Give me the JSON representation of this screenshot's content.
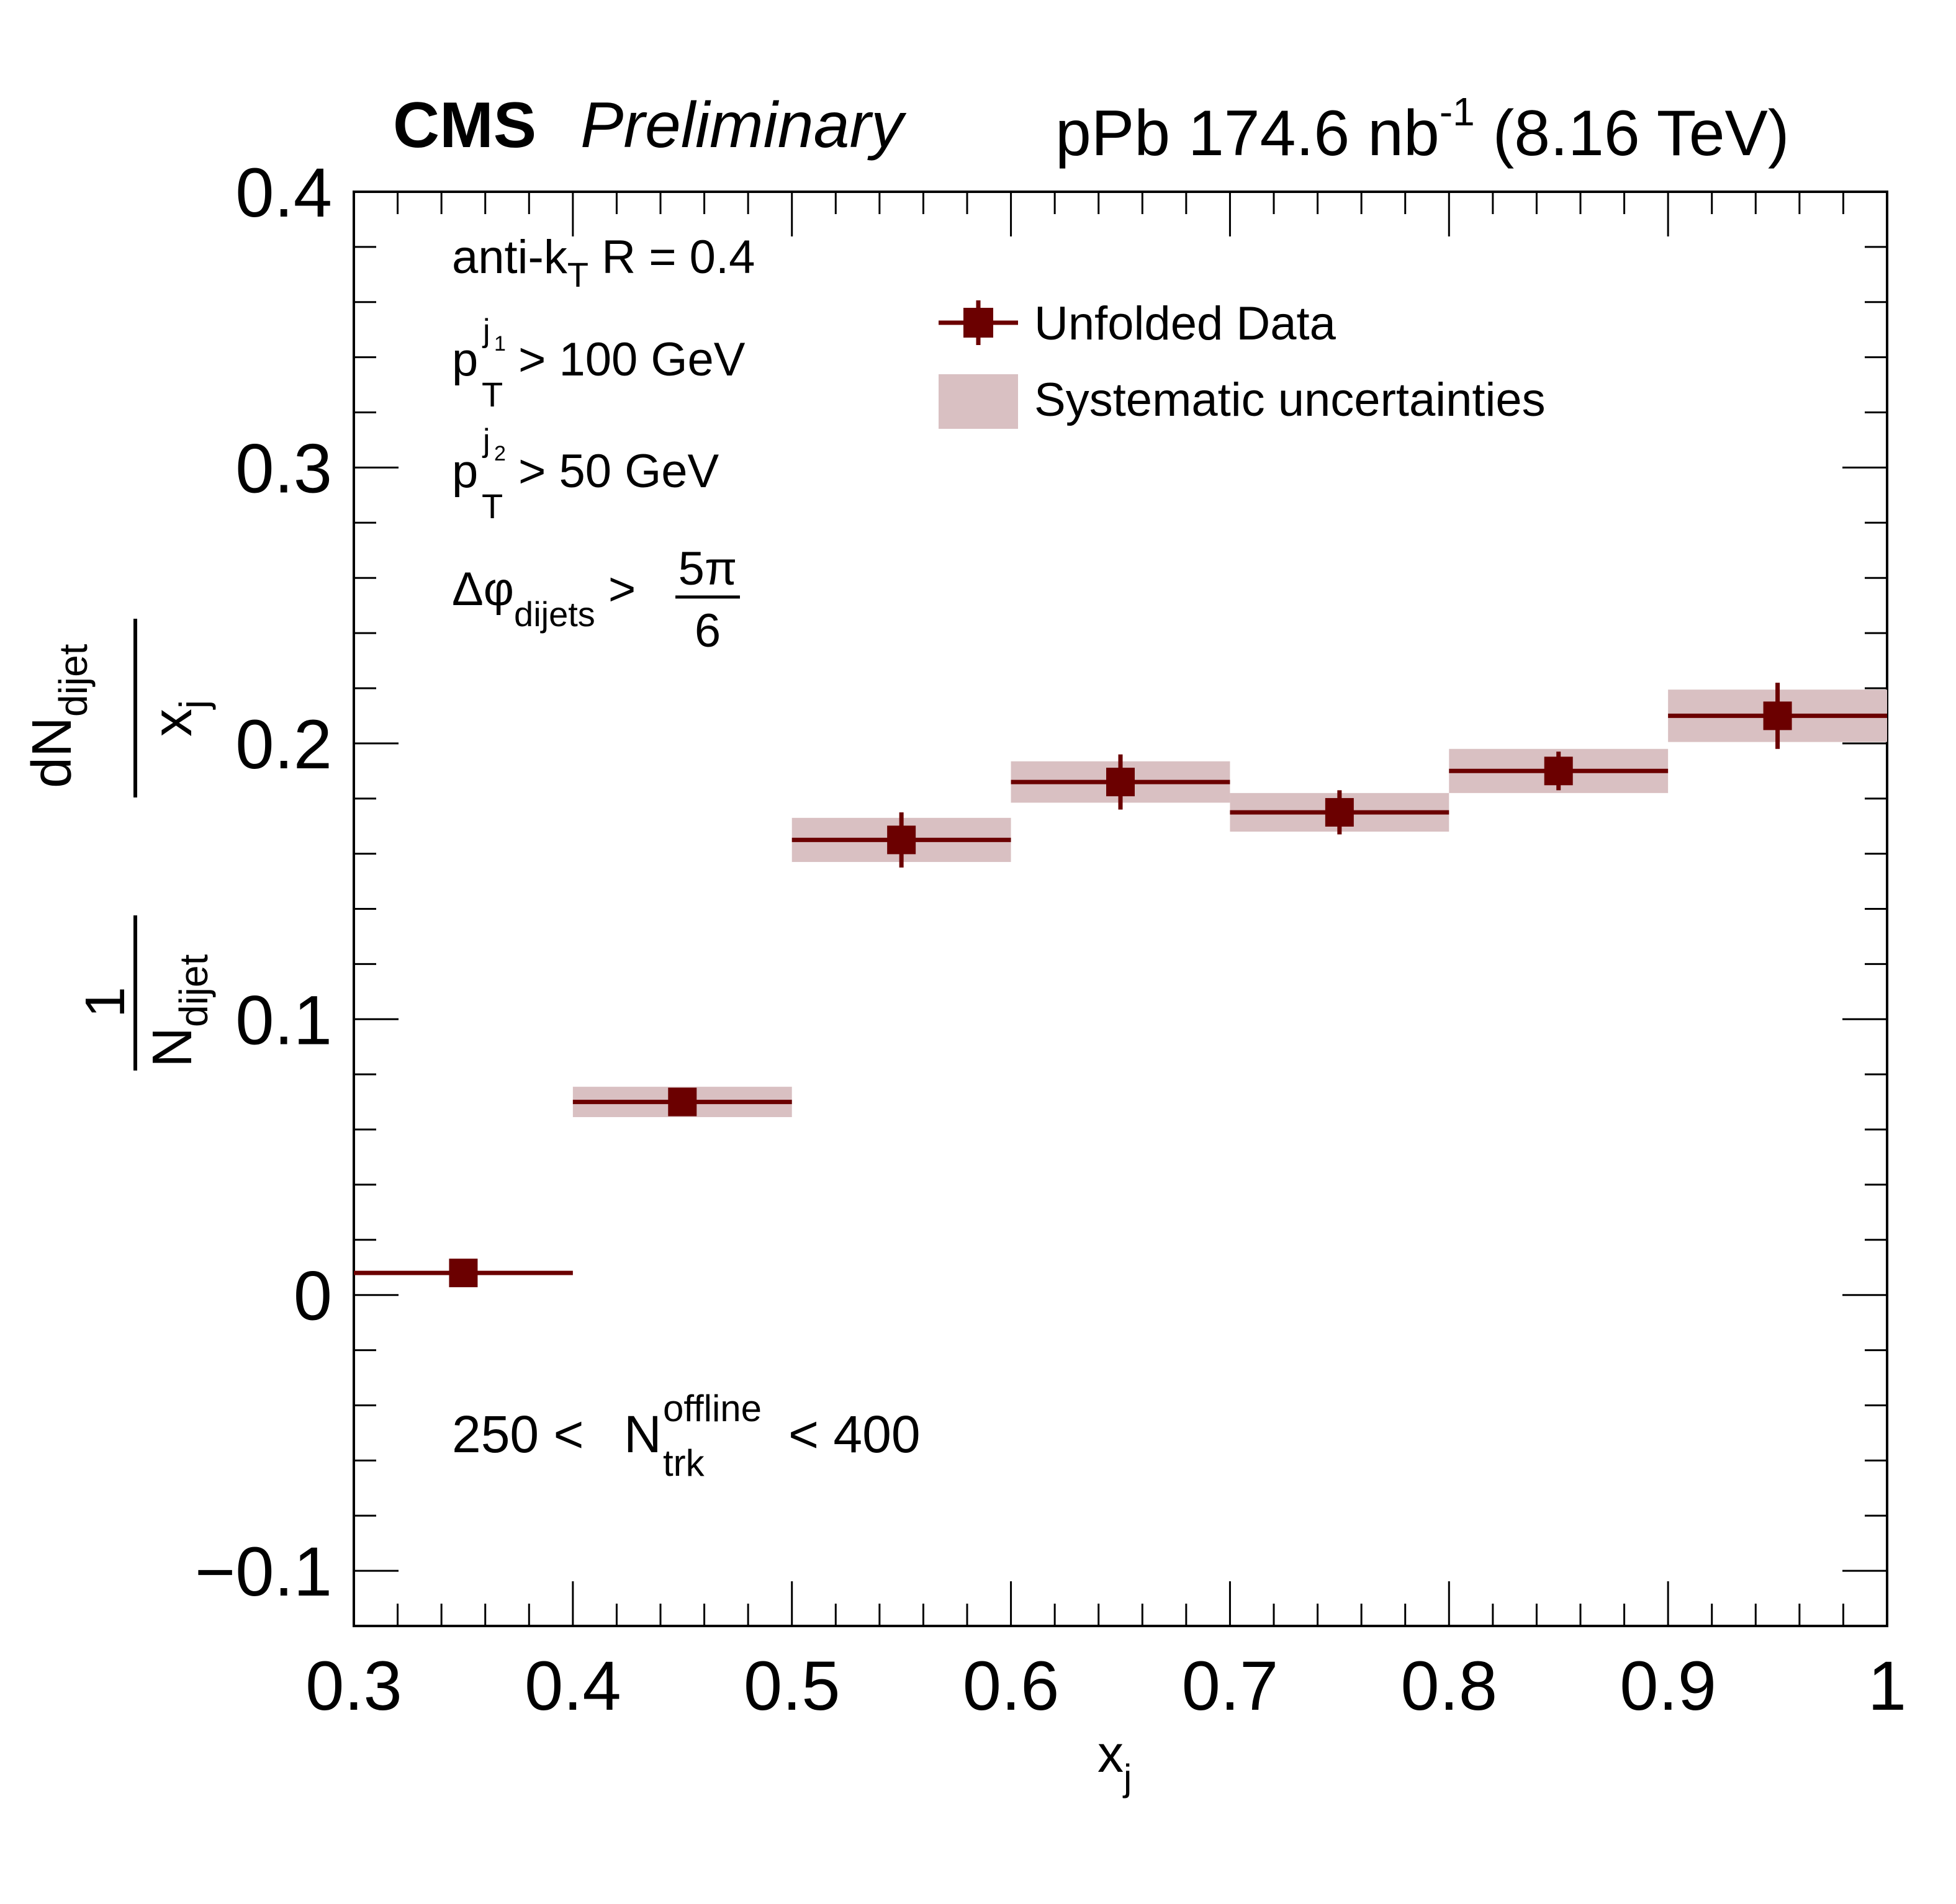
{
  "header": {
    "experiment": "CMS",
    "status": "Preliminary",
    "lumi_system": "pPb",
    "lumi_value": "174.6",
    "lumi_unit": "nb",
    "lumi_exp": "-1",
    "energy": "(8.16 TeV)"
  },
  "annotations": {
    "jet_algo": "anti-k",
    "jet_algo_sub": "T",
    "jet_radius": "R = 0.4",
    "pt": "p",
    "pt_sub": "T",
    "pt_sup": "j",
    "leading_index": "1",
    "subleading_index": "2",
    "lead_cut": "> 100 GeV",
    "sublead_cut": "> 50 GeV",
    "dphi": "Δφ",
    "dphi_sub": "dijets",
    "dphi_op": ">",
    "dphi_num": "5π",
    "dphi_den": "6",
    "mult_low": "250 <",
    "mult_n": "N",
    "mult_sub": "trk",
    "mult_sup": "offline",
    "mult_high": "< 400"
  },
  "y_label": {
    "one": "1",
    "n": "N",
    "n_sub": "dijet",
    "dn": "dN",
    "dn_sub": "dijet",
    "x": "x",
    "x_sub": "j"
  },
  "x_label": {
    "x": "x",
    "x_sub": "j"
  },
  "legend": {
    "data_label": "Unfolded Data",
    "syst_label": "Systematic uncertainties"
  },
  "colors": {
    "data": "#6b0000",
    "syst": "#d9c0c2"
  },
  "chart_data": {
    "type": "scatter",
    "title": "",
    "xlabel": "x_j",
    "ylabel": "1/N_dijet dN_dijet/x_j",
    "xlim": [
      0.3,
      1.0
    ],
    "ylim": [
      -0.12,
      0.4
    ],
    "x_ticks": [
      0.3,
      0.4,
      0.5,
      0.6,
      0.7,
      0.8,
      0.9,
      1.0
    ],
    "x_tick_labels": [
      "0.3",
      "0.4",
      "0.5",
      "0.6",
      "0.7",
      "0.8",
      "0.9",
      "1"
    ],
    "y_ticks": [
      -0.1,
      0.0,
      0.1,
      0.2,
      0.3,
      0.4
    ],
    "y_tick_labels": [
      "−0.1",
      "0",
      "0.1",
      "0.2",
      "0.3",
      "0.4"
    ],
    "legend_position": "top-right",
    "grid": false,
    "series": [
      {
        "name": "Unfolded Data",
        "points": [
          {
            "x_low": 0.3,
            "x_high": 0.4,
            "x": 0.35,
            "y": 0.008,
            "stat": 0.0,
            "syst": 0.0
          },
          {
            "x_low": 0.4,
            "x_high": 0.5,
            "x": 0.45,
            "y": 0.07,
            "stat": 0.005,
            "syst": 0.0055
          },
          {
            "x_low": 0.5,
            "x_high": 0.6,
            "x": 0.55,
            "y": 0.165,
            "stat": 0.01,
            "syst": 0.008
          },
          {
            "x_low": 0.6,
            "x_high": 0.7,
            "x": 0.65,
            "y": 0.186,
            "stat": 0.01,
            "syst": 0.0075
          },
          {
            "x_low": 0.7,
            "x_high": 0.8,
            "x": 0.75,
            "y": 0.175,
            "stat": 0.008,
            "syst": 0.007
          },
          {
            "x_low": 0.8,
            "x_high": 0.9,
            "x": 0.85,
            "y": 0.19,
            "stat": 0.007,
            "syst": 0.008
          },
          {
            "x_low": 0.9,
            "x_high": 1.0,
            "x": 0.95,
            "y": 0.21,
            "stat": 0.012,
            "syst": 0.0095
          }
        ]
      }
    ]
  }
}
